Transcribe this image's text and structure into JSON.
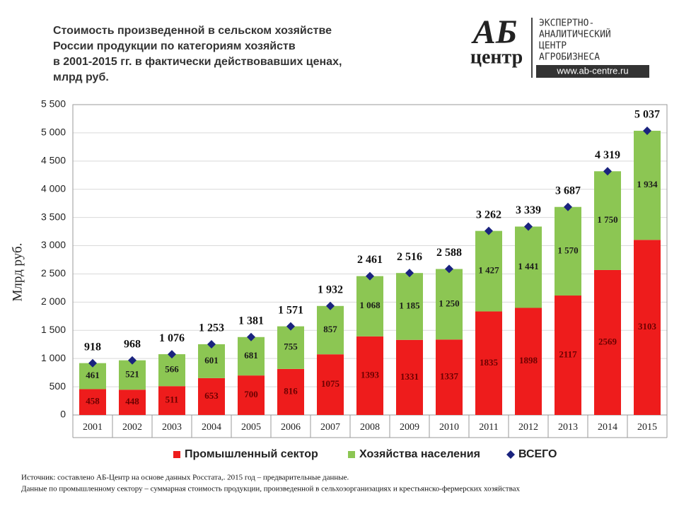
{
  "chart_data": {
    "type": "bar",
    "stacked": true,
    "title": [
      "Стоимость произведенной в сельском хозяйстве",
      "России продукции по категориям хозяйств",
      "в 2001-2015 гг. в фактически действовавших ценах,",
      "млрд руб."
    ],
    "y_label": "Млрд руб.",
    "categories": [
      "2001",
      "2002",
      "2003",
      "2004",
      "2005",
      "2006",
      "2007",
      "2008",
      "2009",
      "2010",
      "2011",
      "2012",
      "2013",
      "2014",
      "2015"
    ],
    "series": [
      {
        "name": "Промышленный сектор",
        "color": "#ee1c1c",
        "label_color": "#6b0000",
        "values": [
          458,
          448,
          511,
          653,
          700,
          816,
          1075,
          1393,
          1331,
          1337,
          1835,
          1898,
          2117,
          2569,
          3103
        ]
      },
      {
        "name": "Хозяйства населения",
        "color": "#8cc653",
        "label_color": "#1a1a1a",
        "values": [
          461,
          521,
          566,
          601,
          681,
          755,
          857,
          1068,
          1185,
          1250,
          1427,
          1441,
          1570,
          1750,
          1934
        ],
        "value_labels": [
          "461",
          "521",
          "566",
          "601",
          "681",
          "755",
          "857",
          "1 068",
          "1 185",
          "1 250",
          "1 427",
          "1 441",
          "1 570",
          "1 750",
          "1 934"
        ]
      },
      {
        "name": "ВСЕГО",
        "type": "marker",
        "marker": "diamond",
        "color": "#1a237e",
        "label_color": "#111111",
        "values": [
          918,
          968,
          1076,
          1253,
          1381,
          1571,
          1932,
          2461,
          2516,
          2588,
          3262,
          3339,
          3687,
          4319,
          5037
        ],
        "value_labels": [
          "918",
          "968",
          "1 076",
          "1 253",
          "1 381",
          "1 571",
          "1 932",
          "2 461",
          "2 516",
          "2 588",
          "3 262",
          "3 339",
          "3 687",
          "4 319",
          "5 037"
        ]
      }
    ],
    "ylim": [
      0,
      5500
    ],
    "yticks": [
      0,
      500,
      {
        "value": 1000,
        "label": "1 000"
      },
      {
        "value": 1500,
        "label": "1 500"
      },
      {
        "value": 2000,
        "label": "2 000"
      },
      {
        "value": 2500,
        "label": "2 500"
      },
      {
        "value": 3000,
        "label": "3 000"
      },
      {
        "value": 3500,
        "label": "3 500"
      },
      {
        "value": 4000,
        "label": "4 000"
      },
      {
        "value": 4500,
        "label": "4 500"
      },
      {
        "value": 5000,
        "label": "5 000"
      },
      {
        "value": 5500,
        "label": "5 500"
      }
    ],
    "grid": true,
    "legend": "bottom"
  },
  "logo": {
    "mark": "АБ",
    "word": "центр",
    "lines": [
      "ЭКСПЕРТНО-",
      "АНАЛИТИЧЕСКИЙ",
      "ЦЕНТР",
      "АГРОБИЗНЕСА"
    ],
    "url": "www.ab-centre.ru"
  },
  "notes": [
    "Источник:  составлено АБ-Центр  на основе данных  Росстата,. 2015 год – предварительные данные.",
    "Данные по промышленному сектору – суммарная стоимость продукции, произведенной в сельхозорганизациях  и крестьянско-фермерских хозяйствах"
  ]
}
